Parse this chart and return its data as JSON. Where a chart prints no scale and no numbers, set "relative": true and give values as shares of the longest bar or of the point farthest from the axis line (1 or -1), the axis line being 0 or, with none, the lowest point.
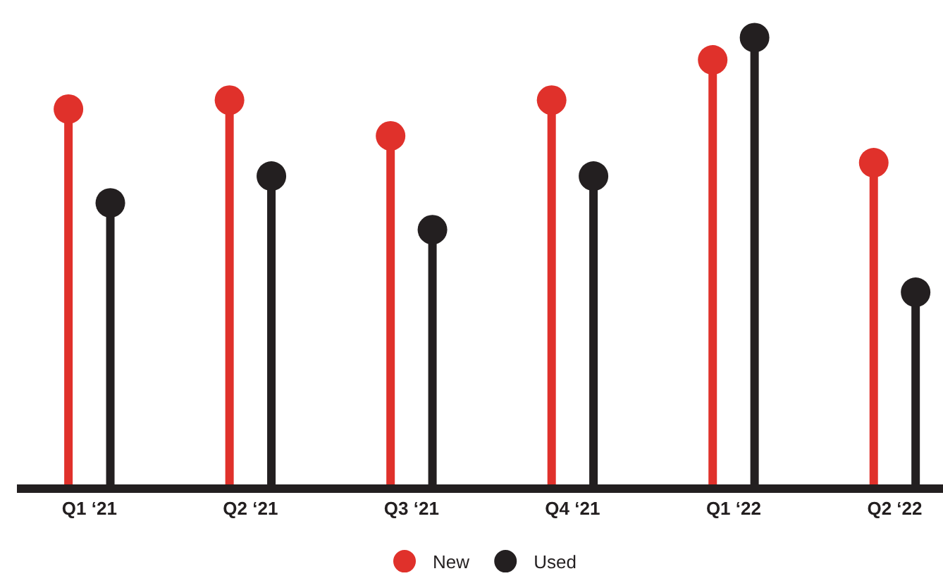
{
  "chart_data": {
    "type": "lollipop",
    "relative": true,
    "categories": [
      "Q1 ‘21",
      "Q2 ‘21",
      "Q3 ‘21",
      "Q4 ‘21",
      "Q1 ‘22",
      "Q2 ‘22"
    ],
    "series": [
      {
        "name": "New",
        "color": "#e0312b",
        "values": [
          0.84,
          0.86,
          0.78,
          0.86,
          0.95,
          0.72
        ]
      },
      {
        "name": "Used",
        "color": "#231f20",
        "values": [
          0.63,
          0.69,
          0.57,
          0.69,
          1,
          0.43
        ]
      }
    ],
    "legend": "bottom",
    "marker": "circle"
  }
}
